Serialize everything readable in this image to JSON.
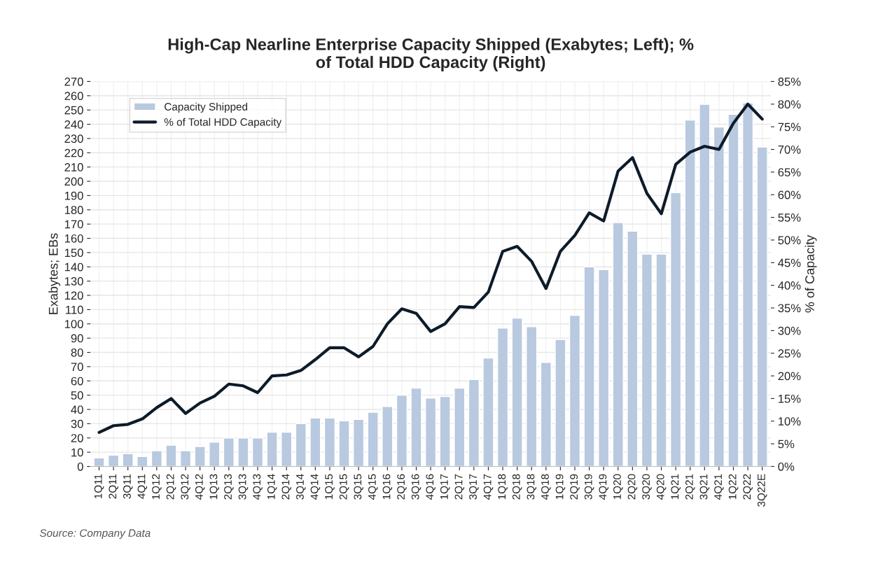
{
  "chart_data": {
    "type": "bar",
    "title": "High-Cap Nearline Enterprise Capacity Shipped (Exabytes; Left); %\nof Total HDD Capacity (Right)",
    "ylabel": "Exabytes; EBs",
    "y2label": "% of Capacity",
    "categories": [
      "1Q11",
      "2Q11",
      "3Q11",
      "4Q11",
      "1Q12",
      "2Q12",
      "3Q12",
      "4Q12",
      "1Q13",
      "2Q13",
      "3Q13",
      "4Q13",
      "1Q14",
      "2Q14",
      "3Q14",
      "4Q14",
      "1Q15",
      "2Q15",
      "3Q15",
      "4Q15",
      "1Q16",
      "2Q16",
      "3Q16",
      "4Q16",
      "1Q17",
      "2Q17",
      "3Q17",
      "4Q17",
      "1Q18",
      "2Q18",
      "3Q18",
      "4Q18",
      "1Q19",
      "2Q19",
      "3Q19",
      "4Q19",
      "1Q20",
      "2Q20",
      "3Q20",
      "4Q20",
      "1Q21",
      "2Q21",
      "3Q21",
      "4Q21",
      "1Q22",
      "2Q22",
      "3Q22E"
    ],
    "series": [
      {
        "name": "Capacity Shipped",
        "color": "#b8c9e0",
        "values": [
          6,
          8,
          9,
          7,
          11,
          15,
          11,
          14,
          17,
          20,
          20,
          20,
          24,
          24,
          30,
          34,
          34,
          32,
          33,
          38,
          42,
          50,
          55,
          48,
          49,
          55,
          61,
          76,
          97,
          104,
          98,
          73,
          89,
          106,
          140,
          138,
          171,
          165,
          149,
          149,
          192,
          243,
          254,
          238,
          247,
          255,
          224
        ]
      },
      {
        "name": "% of Total HDD Capacity",
        "type": "line",
        "axis": "y2",
        "color": "#0d1b2a",
        "values": [
          7.5,
          9,
          9.3,
          10.5,
          13,
          15,
          11.7,
          14,
          15.5,
          18.2,
          17.8,
          16.3,
          20,
          20.2,
          21.2,
          23.6,
          26.2,
          26.2,
          24.2,
          26.5,
          31.5,
          34.8,
          33.8,
          29.8,
          31.5,
          35.3,
          35.1,
          38.5,
          47.5,
          48.6,
          45.3,
          39.3,
          47.5,
          51,
          56,
          54.2,
          65.2,
          68.2,
          60.3,
          55.8,
          66.7,
          69.4,
          70.7,
          70,
          75.8,
          80,
          76.7
        ]
      }
    ],
    "ylim": [
      0,
      270
    ],
    "yticks": [
      0,
      10,
      20,
      30,
      40,
      50,
      60,
      70,
      80,
      90,
      100,
      110,
      120,
      130,
      140,
      150,
      160,
      170,
      180,
      190,
      200,
      210,
      220,
      230,
      240,
      250,
      260,
      270
    ],
    "y2lim": [
      0,
      85
    ],
    "y2ticks": [
      {
        "value": 0,
        "label": "0%"
      },
      {
        "value": 5,
        "label": "5%"
      },
      {
        "value": 10,
        "label": "10%"
      },
      {
        "value": 15,
        "label": "15%"
      },
      {
        "value": 20,
        "label": "20%"
      },
      {
        "value": 25,
        "label": "25%"
      },
      {
        "value": 30,
        "label": "30%"
      },
      {
        "value": 35,
        "label": "35%"
      },
      {
        "value": 40,
        "label": "40%"
      },
      {
        "value": 45,
        "label": "45%"
      },
      {
        "value": 50,
        "label": "50%"
      },
      {
        "value": 55,
        "label": "55%"
      },
      {
        "value": 60,
        "label": "60%"
      },
      {
        "value": 65,
        "label": "65%"
      },
      {
        "value": 70,
        "label": "70%"
      },
      {
        "value": 75,
        "label": "75%"
      },
      {
        "value": 80,
        "label": "80%"
      },
      {
        "value": 85,
        "label": "85%"
      }
    ],
    "grid": true,
    "legend": "top left",
    "annotations": [
      "Source: Company Data"
    ]
  }
}
